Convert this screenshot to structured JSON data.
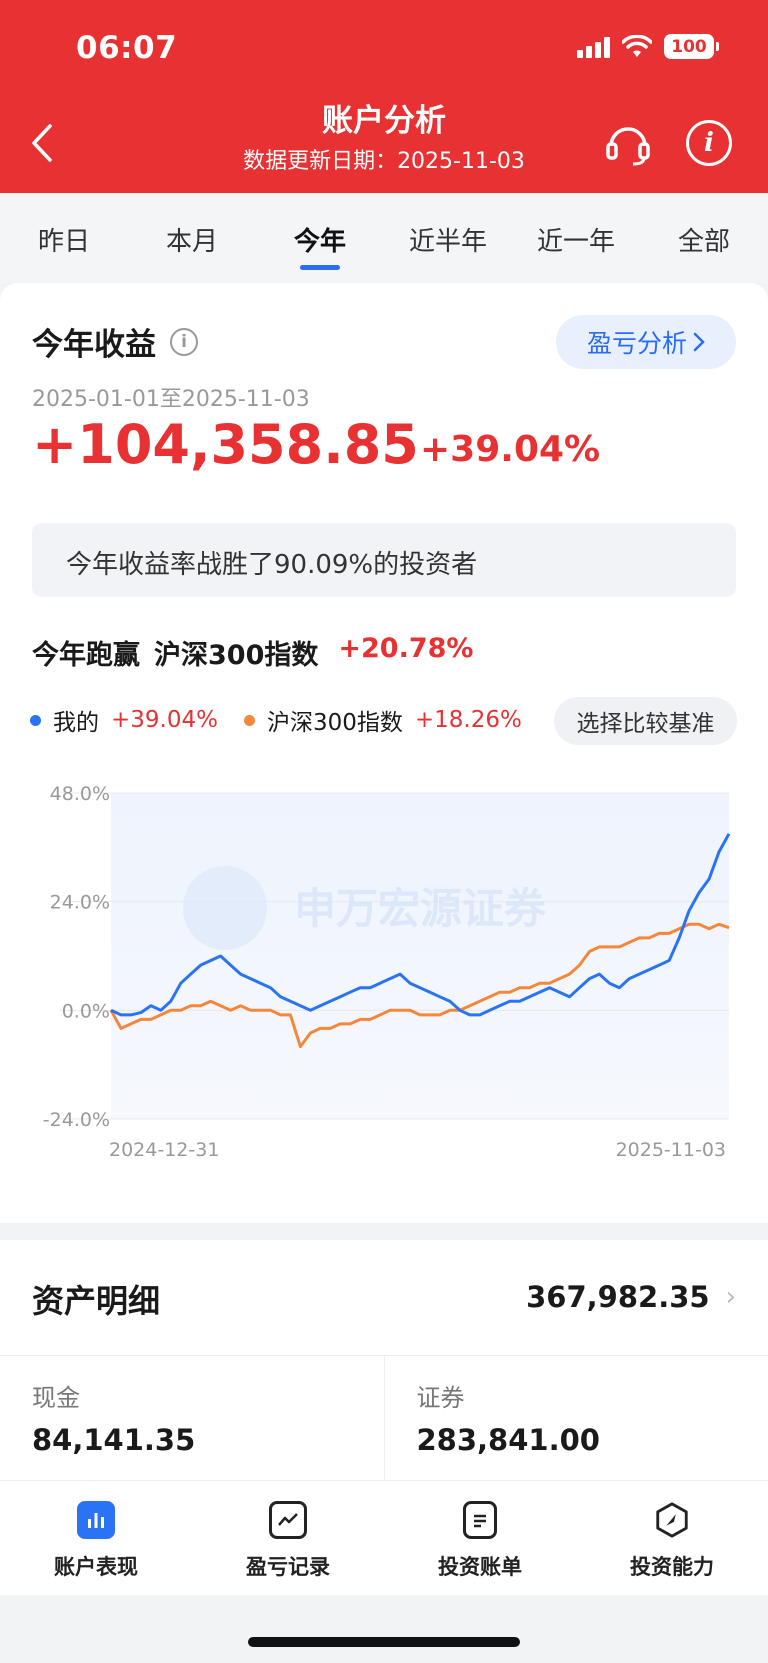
{
  "status": {
    "time": "06:07",
    "battery": "100"
  },
  "header": {
    "title": "账户分析",
    "subtitle": "数据更新日期：2025-11-03"
  },
  "tabs": [
    {
      "label": "昨日"
    },
    {
      "label": "本月"
    },
    {
      "label": "今年"
    },
    {
      "label": "近半年"
    },
    {
      "label": "近一年"
    },
    {
      "label": "全部"
    }
  ],
  "summary": {
    "title": "今年收益",
    "pl_button": "盈亏分析",
    "date_range": "2025-01-01至2025-11-03",
    "amount": "+104,358.85",
    "percent": "+39.04%",
    "beat_text": "今年收益率战胜了90.09%的投资者"
  },
  "compare": {
    "prefix": "今年跑赢",
    "index_name": "沪深300指数",
    "outperform": "+20.78%",
    "mine_label": "我的",
    "mine_value": "+39.04%",
    "index_label": "沪深300指数",
    "index_value": "+18.26%",
    "select_button": "选择比较基准"
  },
  "chart_data": {
    "type": "line",
    "watermark": "申万宏源证券",
    "y_ticks": [
      "48.0%",
      "24.0%",
      "0.0%",
      "-24.0%"
    ],
    "ylim": [
      -24,
      48
    ],
    "x_labels": [
      "2024-12-31",
      "2025-11-03"
    ],
    "colors": {
      "mine": "#2b73f5",
      "index": "#f5873a"
    },
    "series": [
      {
        "name": "我的",
        "values": [
          0,
          -1,
          -1,
          -0.5,
          1,
          0,
          2,
          6,
          8,
          10,
          11,
          12,
          10,
          8,
          7,
          6,
          5,
          3,
          2,
          1,
          0,
          1,
          2,
          3,
          4,
          5,
          5,
          6,
          7,
          8,
          6,
          5,
          4,
          3,
          2,
          0,
          -1,
          -1,
          0,
          1,
          2,
          2,
          3,
          4,
          5,
          4,
          3,
          5,
          7,
          8,
          6,
          5,
          7,
          8,
          9,
          10,
          11,
          16,
          22,
          26,
          29,
          35,
          39
        ]
      },
      {
        "name": "沪深300指数",
        "values": [
          0,
          -4,
          -3,
          -2,
          -2,
          -1,
          0,
          0,
          1,
          1,
          2,
          1,
          0,
          1,
          0,
          0,
          0,
          -1,
          -1,
          -8,
          -5,
          -4,
          -4,
          -3,
          -3,
          -2,
          -2,
          -1,
          0,
          0,
          0,
          -1,
          -1,
          -1,
          0,
          0,
          1,
          2,
          3,
          4,
          4,
          5,
          5,
          6,
          6,
          7,
          8,
          10,
          13,
          14,
          14,
          14,
          15,
          16,
          16,
          17,
          17,
          18,
          19,
          19,
          18,
          19,
          18.26
        ]
      }
    ]
  },
  "assets": {
    "title": "资产明细",
    "total": "367,982.35",
    "cash_label": "现金",
    "cash_value": "84,141.35",
    "securities_label": "证券",
    "securities_value": "283,841.00"
  },
  "nav": [
    {
      "label": "账户表现",
      "icon": "bar-chart-icon"
    },
    {
      "label": "盈亏记录",
      "icon": "trend-icon"
    },
    {
      "label": "投资账单",
      "icon": "document-icon"
    },
    {
      "label": "投资能力",
      "icon": "compass-icon"
    }
  ]
}
